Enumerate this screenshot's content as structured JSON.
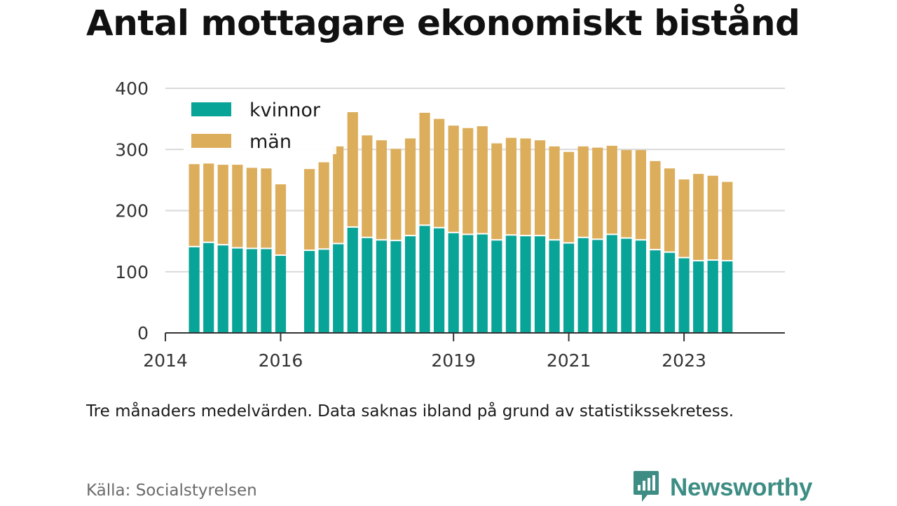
{
  "title": "Antal mottagare ekonomiskt bistånd",
  "note": "Tre månaders medelvärden. Data saknas ibland på grund av statistikssekretess.",
  "source": "Källa: Socialstyrelsen",
  "brand": {
    "name": "Newsworthy",
    "icon": "newsworthy-logo-icon",
    "color": "#3d8d84"
  },
  "colors": {
    "kvinnor": "#08a498",
    "man": "#dcae5c",
    "grid": "#d9d9d9",
    "axis": "#333333"
  },
  "chart_data": {
    "type": "bar",
    "stacked": true,
    "grid": true,
    "legend_position": "top-left",
    "ylim": [
      0,
      400
    ],
    "yticks": [
      "0",
      "100",
      "200",
      "300",
      "400"
    ],
    "xticks": [
      "2014",
      "2016",
      "2019",
      "2021",
      "2023"
    ],
    "xlim": [
      2014.0,
      2024.75
    ],
    "categories": [
      "2014 Q3",
      "2014 Q4",
      "2015 Q1",
      "2015 Q2",
      "2015 Q3",
      "2015 Q4",
      "2016 Q1",
      "2016 Q3",
      "2016 Q4",
      "2017 Q1",
      "2017 Q2",
      "2017 Q3",
      "2017 Q4",
      "2018 Q1",
      "2018 Q2",
      "2018 Q3",
      "2018 Q4",
      "2019 Q1",
      "2019 Q2",
      "2019 Q3",
      "2019 Q4",
      "2020 Q1",
      "2020 Q2",
      "2020 Q3",
      "2020 Q4",
      "2021 Q1",
      "2021 Q2",
      "2021 Q3",
      "2021 Q4",
      "2022 Q1",
      "2022 Q2",
      "2022 Q3",
      "2022 Q4",
      "2023 Q1",
      "2023 Q2",
      "2023 Q3",
      "2023 Q4"
    ],
    "x": [
      2014.5,
      2014.75,
      2015.0,
      2015.25,
      2015.5,
      2015.75,
      2016.0,
      2016.5,
      2016.75,
      2017.0,
      2017.25,
      2017.5,
      2017.75,
      2018.0,
      2018.25,
      2018.5,
      2018.75,
      2019.0,
      2019.25,
      2019.5,
      2019.75,
      2020.0,
      2020.25,
      2020.5,
      2020.75,
      2021.0,
      2021.25,
      2021.5,
      2021.75,
      2022.0,
      2022.25,
      2022.5,
      2022.75,
      2023.0,
      2023.25,
      2023.5,
      2023.75
    ],
    "series": [
      {
        "name": "kvinnor",
        "values": [
          140,
          147,
          143,
          138,
          137,
          137,
          126,
          134,
          136,
          145,
          172,
          155,
          151,
          150,
          158,
          175,
          171,
          163,
          160,
          161,
          151,
          159,
          158,
          158,
          151,
          146,
          155,
          152,
          160,
          154,
          151,
          135,
          131,
          122,
          117,
          118,
          117
        ]
      },
      {
        "name": "män",
        "values": [
          136,
          130,
          132,
          137,
          133,
          132,
          117,
          134,
          143,
          160,
          189,
          168,
          164,
          151,
          160,
          185,
          179,
          176,
          175,
          177,
          159,
          160,
          160,
          157,
          154,
          150,
          150,
          151,
          146,
          145,
          148,
          146,
          138,
          129,
          143,
          139,
          130
        ]
      }
    ]
  }
}
